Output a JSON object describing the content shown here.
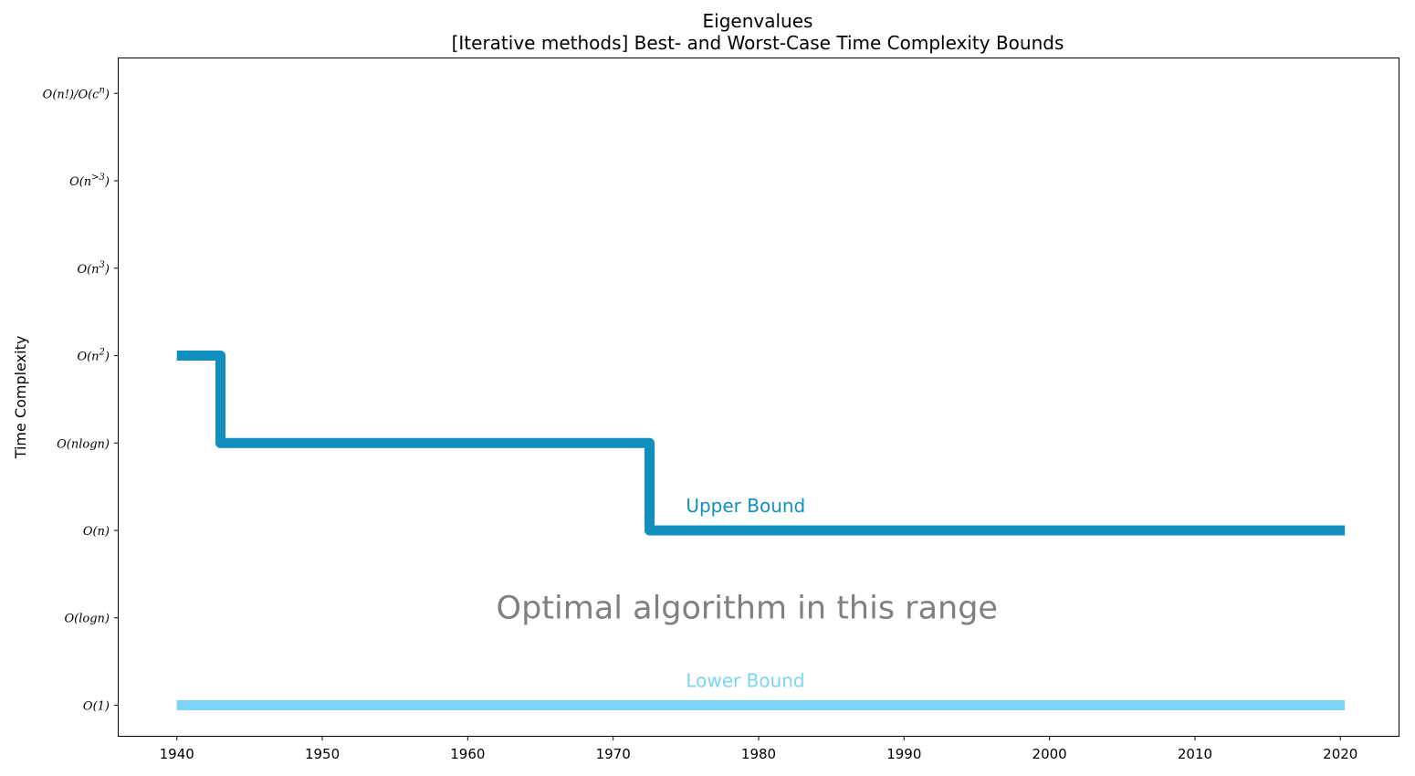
{
  "chart_data": {
    "type": "line",
    "title": "Eigenvalues",
    "subtitle": "[Iterative methods] Best- and Worst-Case Time Complexity Bounds",
    "xlabel": "",
    "ylabel": "Time Complexity",
    "xlim": [
      1936,
      2024
    ],
    "ylim": [
      -0.35,
      7.4
    ],
    "x_ticks": [
      1940,
      1950,
      1960,
      1970,
      1980,
      1990,
      2000,
      2010,
      2020
    ],
    "y_ticks": [
      {
        "value": 0,
        "label": "O(1)",
        "base": "O(1)",
        "sup": "",
        "tail": ""
      },
      {
        "value": 1,
        "label": "O(logn)",
        "base": "O(logn)",
        "sup": "",
        "tail": ""
      },
      {
        "value": 2,
        "label": "O(n)",
        "base": "O(n)",
        "sup": "",
        "tail": ""
      },
      {
        "value": 3,
        "label": "O(nlogn)",
        "base": "O(nlogn)",
        "sup": "",
        "tail": ""
      },
      {
        "value": 4,
        "label": "O(n^2)",
        "base": "O(n",
        "sup": "2",
        "tail": ")"
      },
      {
        "value": 5,
        "label": "O(n^3)",
        "base": "O(n",
        "sup": "3",
        "tail": ")"
      },
      {
        "value": 6,
        "label": "O(n^>3)",
        "base": "O(n",
        "sup": ">3",
        "tail": ")"
      },
      {
        "value": 7,
        "label": "O(n!)/O(c^n)",
        "base": "O(n!)/O(c",
        "sup": "n",
        "tail": ")"
      }
    ],
    "grid": false,
    "series": [
      {
        "name": "Upper Bound",
        "color": "#118fbf",
        "step": true,
        "points": [
          [
            1940,
            4
          ],
          [
            1943,
            4
          ],
          [
            1943,
            3
          ],
          [
            1972.5,
            3
          ],
          [
            1972.5,
            2
          ],
          [
            2020.3,
            2
          ]
        ]
      },
      {
        "name": "Lower Bound",
        "color": "#7bd4f5",
        "step": true,
        "points": [
          [
            1940,
            0
          ],
          [
            2020.3,
            0
          ]
        ]
      }
    ],
    "series_label_anchor": {
      "x": 1975,
      "offset": 0.28
    },
    "annotations": [
      {
        "text": "Optimal algorithm in this range",
        "x": 1979.2,
        "y": 1.12,
        "color": "#808080"
      }
    ]
  }
}
